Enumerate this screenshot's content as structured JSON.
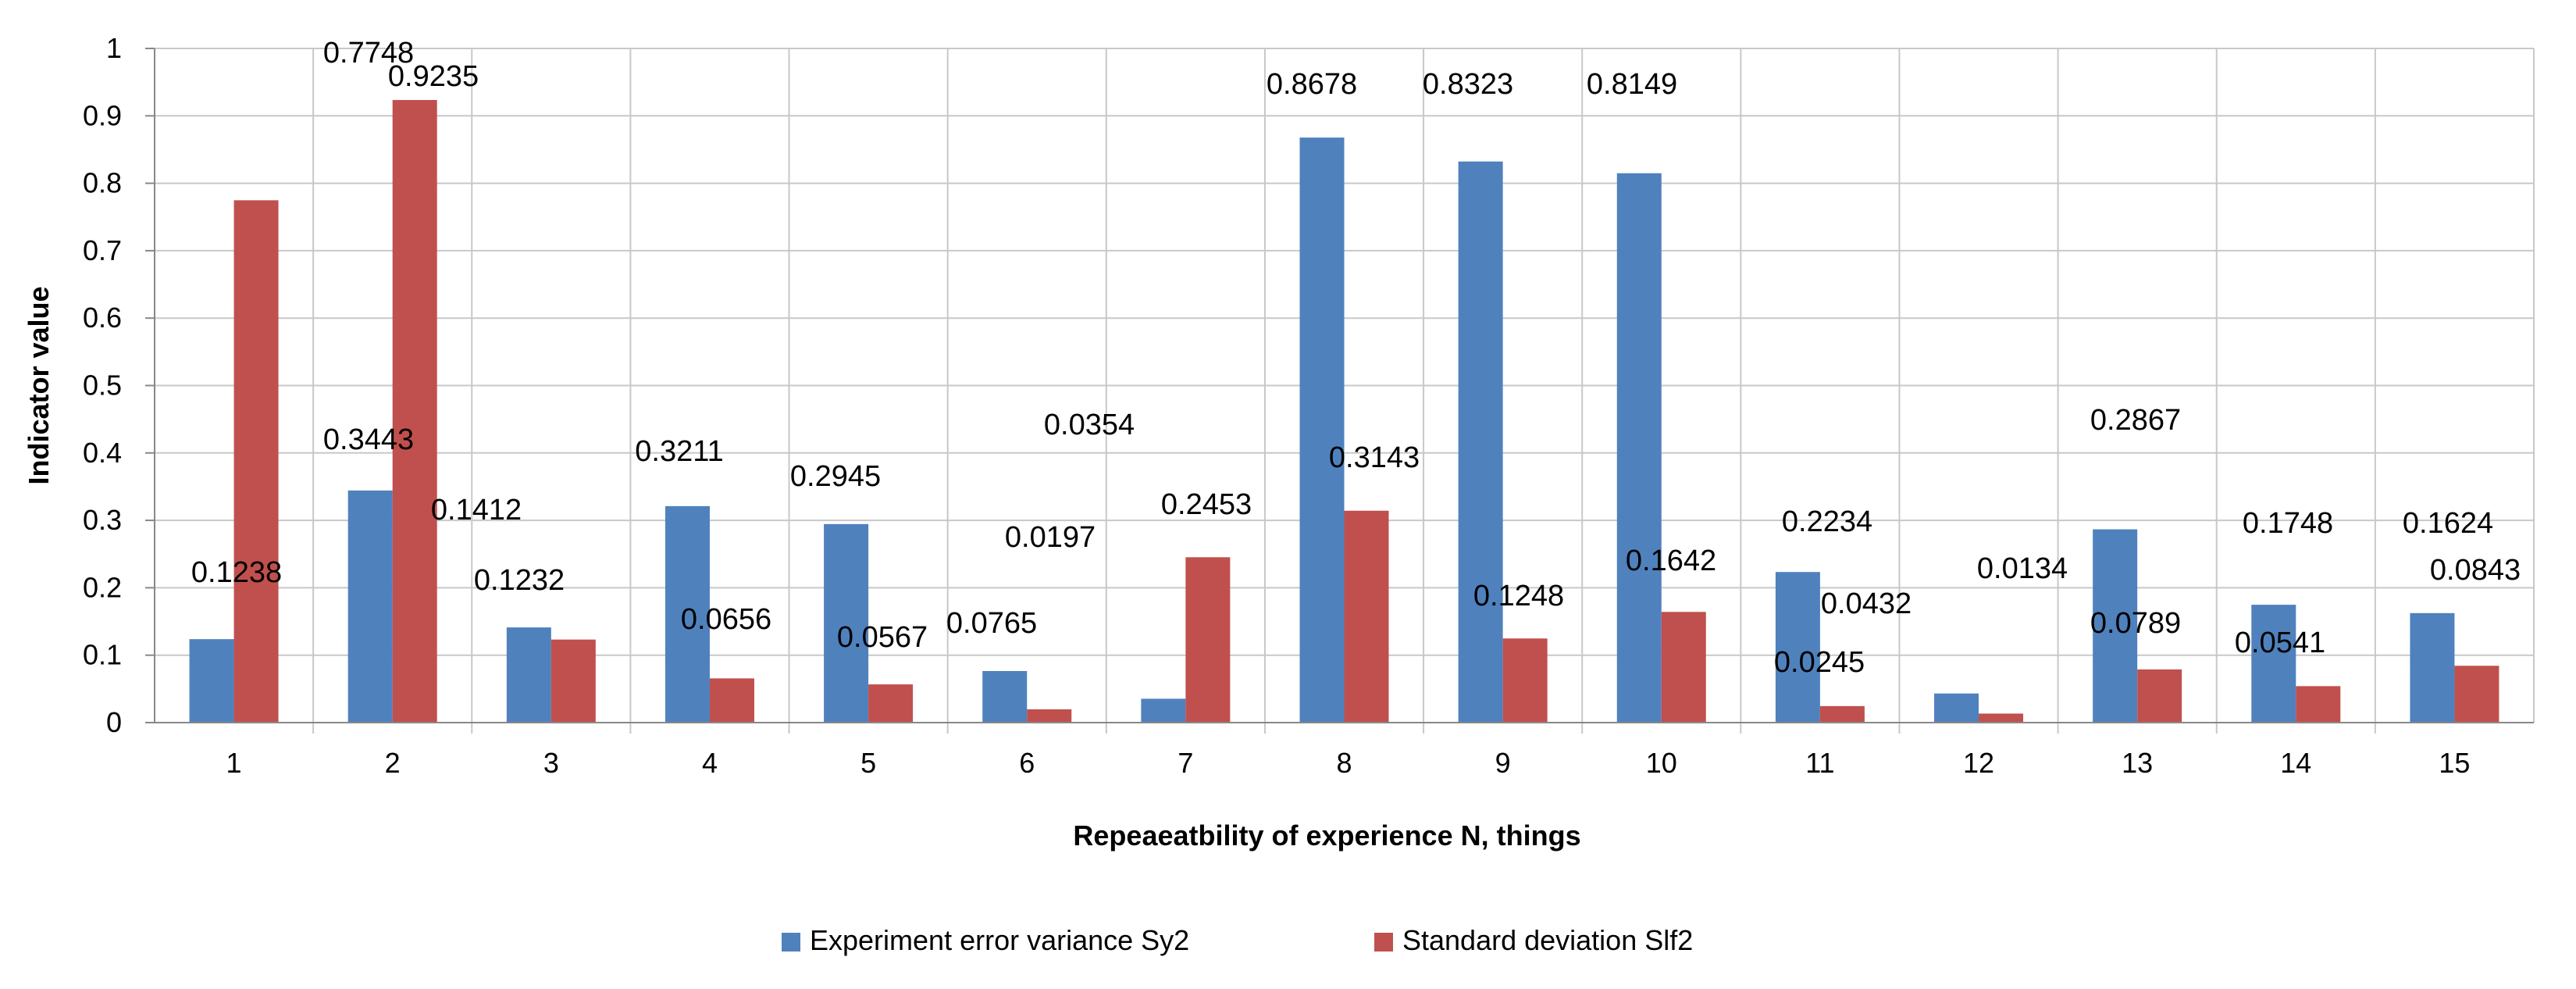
{
  "chart_data": {
    "type": "bar",
    "title": "",
    "xlabel": "Repeaeatbility of experience N, things",
    "ylabel": "Indicator value",
    "ylim": [
      0,
      1
    ],
    "yticks": [
      "0",
      "0.1",
      "0.2",
      "0.3",
      "0.4",
      "0.5",
      "0.6",
      "0.7",
      "0.8",
      "0.9",
      "1"
    ],
    "grid": true,
    "legend_position": "bottom",
    "categories": [
      "1",
      "2",
      "3",
      "4",
      "5",
      "6",
      "7",
      "8",
      "9",
      "10",
      "11",
      "12",
      "13",
      "14",
      "15"
    ],
    "series": [
      {
        "name": "Experiment error variance Sy2",
        "color": "#4f81bd",
        "values": [
          0.1238,
          0.3443,
          0.1412,
          0.3211,
          0.2945,
          0.0765,
          0.0354,
          0.8678,
          0.8323,
          0.8149,
          0.2234,
          0.0432,
          0.2867,
          0.1748,
          0.1624
        ],
        "labels": [
          "0.1238",
          "0.3443",
          "0.1412",
          "0.3211",
          "0.2945",
          "0.0765",
          "0.0354",
          "0.8678",
          "0.8323",
          "0.8149",
          "0.2234",
          "0.0432",
          "0.2867",
          "0.1748",
          "0.1624"
        ]
      },
      {
        "name": "Standard deviation Slf2",
        "color": "#c0504d",
        "values": [
          0.7748,
          0.9235,
          0.1232,
          0.0656,
          0.0567,
          0.0197,
          0.2453,
          0.3143,
          0.1248,
          0.1642,
          0.0245,
          0.0134,
          0.0789,
          0.0541,
          0.0843
        ],
        "labels": [
          "0.7748",
          "0.9235",
          "0.1232",
          "0.0656",
          "0.0567",
          "0.0197",
          "0.2453",
          "0.3143",
          "0.1248",
          "0.1642",
          "0.0245",
          "0.0134",
          "0.0789",
          "0.0541",
          "0.0843"
        ]
      }
    ]
  }
}
